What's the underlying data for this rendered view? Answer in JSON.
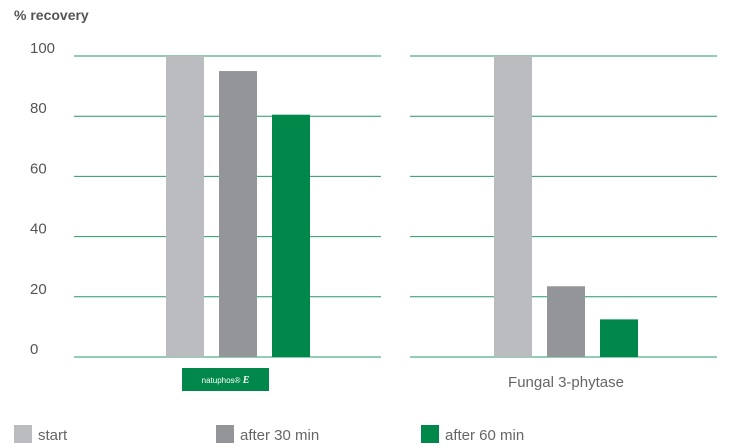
{
  "chart_data": {
    "type": "bar",
    "ylabel": "% recovery",
    "ylim": [
      0,
      100
    ],
    "yticks": [
      0,
      20,
      40,
      60,
      80,
      100
    ],
    "grid": true,
    "legend_position": "bottom",
    "groups": [
      {
        "label": "natuphos® E",
        "label_style": "logo",
        "values": [
          100,
          95,
          80.5
        ]
      },
      {
        "label": "Fungal 3-phytase",
        "label_style": "text",
        "values": [
          100,
          23.5,
          12.5
        ]
      }
    ],
    "series": [
      {
        "name": "start",
        "color": "#bbbcbf"
      },
      {
        "name": "after 30 min",
        "color": "#939598"
      },
      {
        "name": "after 60 min",
        "color": "#00874a"
      }
    ],
    "gridline_color": "#00874a"
  }
}
